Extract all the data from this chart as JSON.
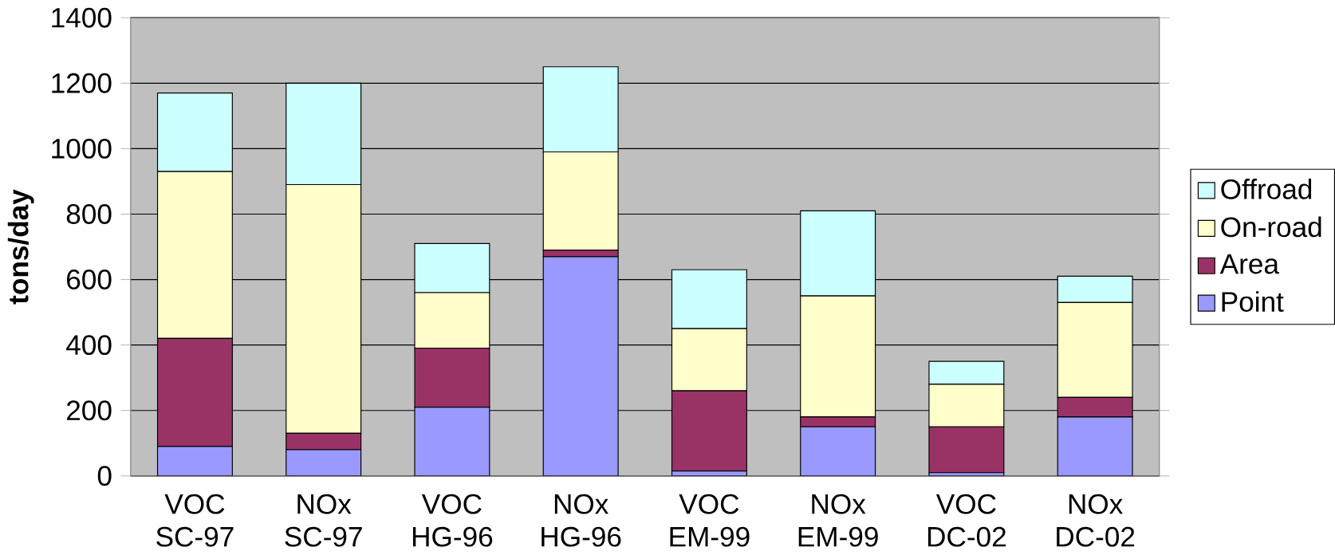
{
  "chart_data": {
    "type": "bar",
    "stacked": true,
    "ylabel": "**tons/day**",
    "categories": [
      "VOC SC-97",
      "NOx SC-97",
      "VOC HG-96",
      "NOx HG-96",
      "VOC EM-99",
      "NOx EM-99",
      "VOC DC-02",
      "NOx DC-02"
    ],
    "series": [
      {
        "name": "Point",
        "color": "#9999ff",
        "values": [
          90,
          80,
          210,
          670,
          15,
          150,
          10,
          180
        ]
      },
      {
        "name": "Area",
        "color": "#993366",
        "values": [
          330,
          50,
          180,
          20,
          245,
          30,
          140,
          60
        ]
      },
      {
        "name": "On-road",
        "color": "#ffffcc",
        "values": [
          510,
          760,
          170,
          300,
          190,
          370,
          130,
          290
        ]
      },
      {
        "name": "Offroad",
        "color": "#ccffff",
        "values": [
          240,
          310,
          150,
          260,
          180,
          260,
          70,
          80
        ]
      }
    ],
    "ylim": [
      0,
      1400
    ],
    "yticks": [
      0,
      200,
      400,
      600,
      800,
      1000,
      1200,
      1400
    ],
    "grid": "y",
    "legend": "right"
  }
}
